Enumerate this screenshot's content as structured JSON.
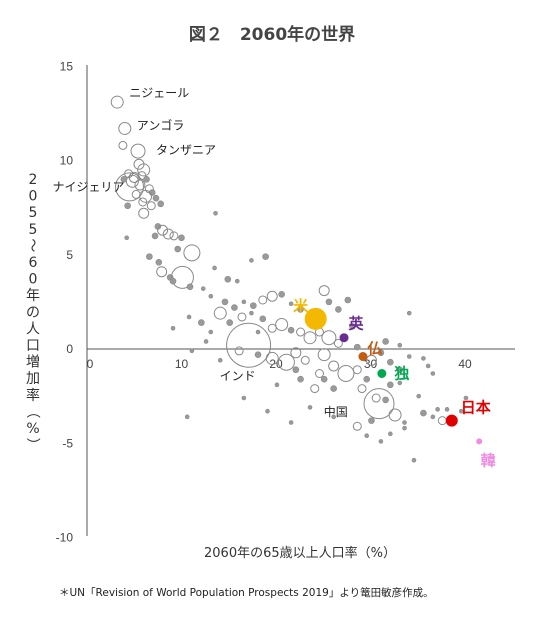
{
  "chart_data": {
    "type": "scatter",
    "title": "図２　2060年の世界",
    "xlabel": "2060年の65歳以上人口率（%）",
    "ylabel": "2055〜60年の人口増加率（%）",
    "xlim": [
      0,
      46
    ],
    "ylim": [
      -10,
      15
    ],
    "xticks": [
      0,
      10,
      20,
      30,
      40
    ],
    "yticks": [
      15,
      10,
      5,
      0,
      -5,
      -10
    ],
    "source": "＊UN「Revision of World Population Prospects 2019」より篭田敏彦作成。",
    "annotations": [
      {
        "label": "ニジェール",
        "x": 3.2,
        "y": 13.1
      },
      {
        "label": "アンゴラ",
        "x": 4.0,
        "y": 11.7
      },
      {
        "label": "タンザニア",
        "x": 5.4,
        "y": 10.5
      },
      {
        "label": "ナイジェリア",
        "x": 4.5,
        "y": 8.6
      },
      {
        "label": "インド",
        "x": 17.0,
        "y": 0.2
      },
      {
        "label": "中国",
        "x": 27.8,
        "y": -2.5
      }
    ],
    "highlighted": [
      {
        "label": "米",
        "x": 24.2,
        "y": 1.6,
        "r": 11,
        "color": "#F5B800"
      },
      {
        "label": "英",
        "x": 27.2,
        "y": 0.6,
        "r": 4.5,
        "color": "#6A2C91"
      },
      {
        "label": "仏",
        "x": 29.2,
        "y": -0.4,
        "r": 4.5,
        "color": "#C55A11"
      },
      {
        "label": "独",
        "x": 31.2,
        "y": -1.3,
        "r": 4.5,
        "color": "#00A850"
      },
      {
        "label": "日本",
        "x": 38.6,
        "y": -3.8,
        "r": 6,
        "color": "#E00000"
      },
      {
        "label": "韓",
        "x": 41.5,
        "y": -4.9,
        "r": 3,
        "color": "#F08CE0"
      }
    ],
    "series": [
      {
        "points": [
          [
            3.2,
            13.1,
            6
          ],
          [
            4.0,
            11.7,
            6
          ],
          [
            5.4,
            10.5,
            7
          ],
          [
            4.5,
            8.6,
            14
          ],
          [
            3.8,
            10.8,
            4
          ],
          [
            5.5,
            9.8,
            5
          ],
          [
            6.0,
            9.5,
            6
          ],
          [
            4.4,
            9.3,
            4
          ],
          [
            5.0,
            9.1,
            5
          ],
          [
            5.8,
            9.2,
            4
          ],
          [
            6.3,
            9.0,
            3
          ],
          [
            4.8,
            8.9,
            6
          ],
          [
            5.6,
            8.7,
            5
          ],
          [
            6.6,
            8.5,
            4
          ],
          [
            3.9,
            9.0,
            3
          ],
          [
            6.9,
            8.3,
            3
          ],
          [
            5.2,
            8.2,
            4
          ],
          [
            6.2,
            8.1,
            6
          ],
          [
            7.3,
            8.0,
            3
          ],
          [
            5.9,
            7.8,
            4
          ],
          [
            6.8,
            7.6,
            4
          ],
          [
            7.8,
            7.7,
            3
          ],
          [
            6.0,
            7.2,
            5
          ],
          [
            4.3,
            7.6,
            3
          ],
          [
            7.5,
            6.5,
            3
          ],
          [
            8.0,
            6.3,
            5
          ],
          [
            8.6,
            6.1,
            5
          ],
          [
            9.2,
            6.0,
            4
          ],
          [
            7.2,
            6.0,
            3
          ],
          [
            10.0,
            5.9,
            3
          ],
          [
            9.6,
            5.3,
            3
          ],
          [
            11.1,
            5.1,
            8
          ],
          [
            13.6,
            7.2,
            2
          ],
          [
            4.2,
            5.9,
            2
          ],
          [
            6.6,
            4.9,
            3
          ],
          [
            7.6,
            4.6,
            3
          ],
          [
            7.9,
            4.1,
            5
          ],
          [
            8.8,
            3.8,
            3
          ],
          [
            10.1,
            3.8,
            11
          ],
          [
            9.1,
            3.6,
            3
          ],
          [
            10.9,
            3.3,
            3
          ],
          [
            12.3,
            3.2,
            2
          ],
          [
            13.5,
            4.3,
            2
          ],
          [
            14.9,
            3.7,
            3
          ],
          [
            15.9,
            3.6,
            2
          ],
          [
            17.4,
            4.7,
            2
          ],
          [
            18.9,
            4.9,
            3
          ],
          [
            13.1,
            2.8,
            2
          ],
          [
            14.6,
            2.5,
            3
          ],
          [
            15.6,
            2.2,
            3
          ],
          [
            16.6,
            2.5,
            2
          ],
          [
            17.6,
            2.3,
            3
          ],
          [
            18.6,
            2.6,
            4
          ],
          [
            19.6,
            2.8,
            5
          ],
          [
            20.6,
            2.9,
            3
          ],
          [
            21.6,
            2.4,
            2
          ],
          [
            22.6,
            2.1,
            3
          ],
          [
            25.1,
            3.1,
            5
          ],
          [
            25.6,
            2.5,
            3
          ],
          [
            26.6,
            2.1,
            3
          ],
          [
            14.1,
            1.9,
            6
          ],
          [
            15.1,
            1.4,
            3
          ],
          [
            16.4,
            1.7,
            4
          ],
          [
            17.4,
            1.9,
            2
          ],
          [
            18.6,
            1.6,
            3
          ],
          [
            19.6,
            1.1,
            4
          ],
          [
            20.6,
            1.3,
            6
          ],
          [
            21.6,
            1.0,
            3
          ],
          [
            22.6,
            0.9,
            4
          ],
          [
            23.6,
            0.6,
            6
          ],
          [
            24.6,
            0.9,
            4
          ],
          [
            25.6,
            0.6,
            7
          ],
          [
            26.6,
            0.3,
            4
          ],
          [
            28.6,
            0.1,
            3
          ],
          [
            12.1,
            1.4,
            3
          ],
          [
            13.1,
            0.9,
            2
          ],
          [
            10.8,
            1.7,
            2
          ],
          [
            17.1,
            0.2,
            22
          ],
          [
            16.1,
            -0.1,
            4
          ],
          [
            18.1,
            -0.3,
            3
          ],
          [
            19.6,
            -0.5,
            6
          ],
          [
            21.1,
            -0.7,
            8
          ],
          [
            22.1,
            -0.2,
            5
          ],
          [
            23.1,
            -0.6,
            4
          ],
          [
            25.1,
            -0.3,
            6
          ],
          [
            26.1,
            -0.9,
            5
          ],
          [
            27.4,
            -1.3,
            8
          ],
          [
            28.6,
            -1.1,
            4
          ],
          [
            29.6,
            -1.6,
            3
          ],
          [
            30.1,
            -0.6,
            5
          ],
          [
            31.1,
            -0.2,
            3
          ],
          [
            32.1,
            -0.7,
            3
          ],
          [
            33.1,
            -1.1,
            3
          ],
          [
            34.1,
            -0.4,
            2
          ],
          [
            24.1,
            -2.1,
            4
          ],
          [
            25.1,
            -1.6,
            3
          ],
          [
            26.1,
            -2.1,
            3
          ],
          [
            29.1,
            -2.1,
            4
          ],
          [
            30.6,
            -2.6,
            4
          ],
          [
            31.6,
            -2.7,
            3
          ],
          [
            32.1,
            -1.9,
            3
          ],
          [
            33.1,
            -1.8,
            2
          ],
          [
            30.9,
            -2.9,
            15
          ],
          [
            32.6,
            -3.5,
            6
          ],
          [
            33.6,
            -3.9,
            2
          ],
          [
            35.6,
            -3.4,
            3
          ],
          [
            36.6,
            -3.6,
            2
          ],
          [
            37.1,
            -3.2,
            2
          ],
          [
            38.1,
            -3.2,
            2
          ],
          [
            37.6,
            -3.8,
            4
          ],
          [
            28.6,
            -4.1,
            4
          ],
          [
            29.6,
            -4.6,
            2
          ],
          [
            31.1,
            -4.9,
            2
          ],
          [
            34.6,
            -5.9,
            2
          ],
          [
            33.6,
            -4.2,
            2
          ],
          [
            26.1,
            -3.6,
            2
          ],
          [
            21.6,
            -3.9,
            2
          ],
          [
            19.1,
            -3.3,
            2
          ],
          [
            16.6,
            -2.6,
            2
          ],
          [
            10.6,
            -3.6,
            2
          ],
          [
            24.6,
            1.6,
            3
          ],
          [
            28.1,
            1.2,
            3
          ],
          [
            31.6,
            0.4,
            3
          ],
          [
            33.1,
            0.2,
            2
          ],
          [
            35.6,
            -0.5,
            2
          ],
          [
            36.1,
            -0.9,
            2
          ],
          [
            34.1,
            1.9,
            2
          ],
          [
            27.6,
            2.6,
            3
          ],
          [
            22.6,
            -1.6,
            3
          ],
          [
            18.1,
            0.9,
            2
          ],
          [
            20.1,
            -1.9,
            2
          ],
          [
            14.1,
            -0.6,
            2
          ],
          [
            12.6,
            0.4,
            2
          ],
          [
            11.1,
            -0.1,
            2
          ],
          [
            9.1,
            1.1,
            2
          ],
          [
            23.6,
            -3.1,
            2
          ],
          [
            22.1,
            -1.1,
            3
          ],
          [
            24.6,
            -1.3,
            4
          ],
          [
            30.1,
            -3.8,
            3
          ],
          [
            32.1,
            -4.5,
            2
          ],
          [
            35.1,
            -2.5,
            2
          ],
          [
            39.6,
            -3.3,
            2
          ],
          [
            40.1,
            -2.6,
            2
          ],
          [
            36.6,
            -1.3,
            2
          ]
        ]
      }
    ],
    "grid": false,
    "legend": "none"
  }
}
